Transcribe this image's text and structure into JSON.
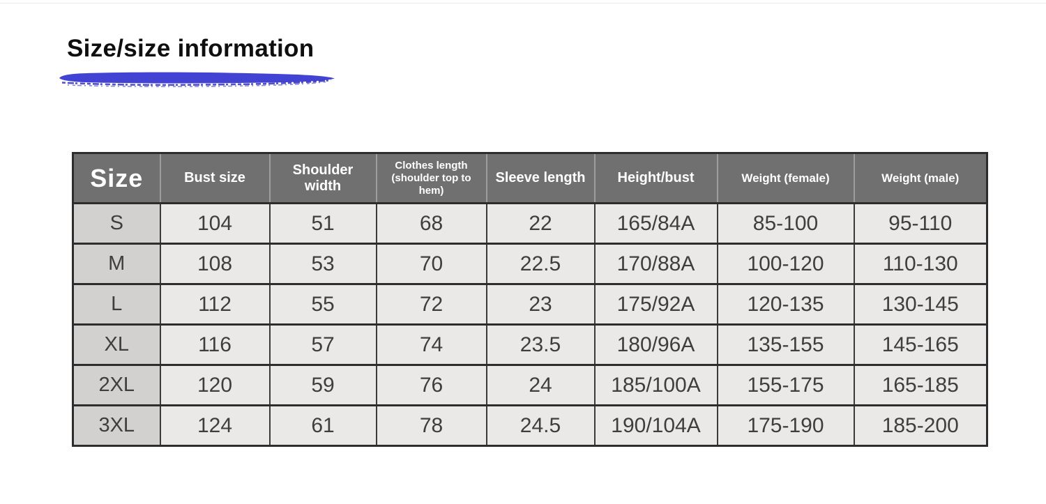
{
  "page_title": "Size/size information",
  "colors": {
    "header-bg": "#707070",
    "header-text": "#ffffff",
    "size-col-bg": "#d2d1cf",
    "cell-bg": "#eae9e7",
    "border": "#2d2d2d",
    "cell-text": "#3e3e3e",
    "brush-blue": "#3b3bd1",
    "brush-dark": "#2826b8",
    "title-color": "#0f0f0f"
  },
  "chart_data": {
    "type": "table",
    "title": "Size/size information",
    "columns": [
      "Size",
      "Bust size",
      "Shoulder width",
      "Clothes length (shoulder top to hem)",
      "Sleeve length",
      "Height/bust",
      "Weight (female)",
      "Weight (male)"
    ],
    "rows": [
      [
        "S",
        "104",
        "51",
        "68",
        "22",
        "165/84A",
        "85-100",
        "95-110"
      ],
      [
        "M",
        "108",
        "53",
        "70",
        "22.5",
        "170/88A",
        "100-120",
        "110-130"
      ],
      [
        "L",
        "112",
        "55",
        "72",
        "23",
        "175/92A",
        "120-135",
        "130-145"
      ],
      [
        "XL",
        "116",
        "57",
        "74",
        "23.5",
        "180/96A",
        "135-155",
        "145-165"
      ],
      [
        "2XL",
        "120",
        "59",
        "76",
        "24",
        "185/100A",
        "155-175",
        "165-185"
      ],
      [
        "3XL",
        "124",
        "61",
        "78",
        "24.5",
        "190/104A",
        "175-190",
        "185-200"
      ]
    ]
  }
}
